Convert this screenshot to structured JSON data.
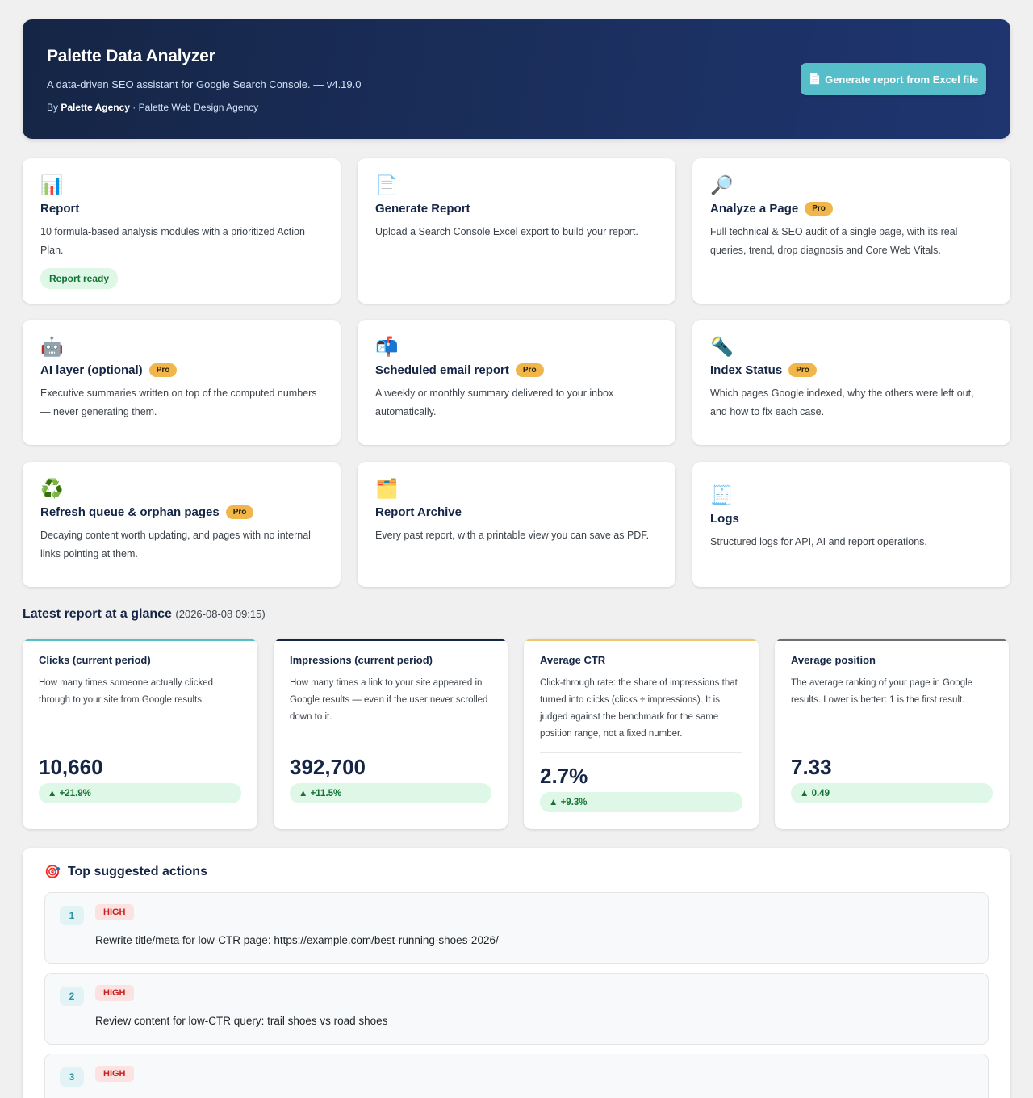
{
  "header": {
    "title": "Palette Data Analyzer",
    "subtitle": "A data-driven SEO assistant for Google Search Console. — v4.19.0",
    "by_prefix": "By",
    "agency": "Palette Agency",
    "agency_suffix": "· Palette Web Design Agency",
    "generate_icon": "document-icon",
    "generate_label": "Generate report from Excel file"
  },
  "features": [
    {
      "icon": "📊",
      "icon_name": "bar-chart-icon",
      "title": "Report",
      "desc": "10 formula-based analysis modules with a prioritized Action Plan.",
      "pro": false,
      "status": "Report ready"
    },
    {
      "icon": "📄",
      "icon_name": "document-icon",
      "title": "Generate Report",
      "desc": "Upload a Search Console Excel export to build your report.",
      "pro": false
    },
    {
      "icon": "🔎",
      "icon_name": "magnifier-icon",
      "title": "Analyze a Page",
      "desc": "Full technical & SEO audit of a single page, with its real queries, trend, drop diagnosis and Core Web Vitals.",
      "pro": true
    },
    {
      "icon": "🤖",
      "icon_name": "robot-icon",
      "title": "AI layer (optional)",
      "desc": "Executive summaries written on top of the computed numbers — never generating them.",
      "pro": true
    },
    {
      "icon": "📬",
      "icon_name": "mailbox-icon",
      "title": "Scheduled email report",
      "desc": "A weekly or monthly summary delivered to your inbox automatically.",
      "pro": true
    },
    {
      "icon": "🔦",
      "icon_name": "flashlight-icon",
      "title": "Index Status",
      "desc": "Which pages Google indexed, why the others were left out, and how to fix each case.",
      "pro": true
    },
    {
      "icon": "♻️",
      "icon_name": "recycle-icon",
      "title": "Refresh queue & orphan pages",
      "desc": "Decaying content worth updating, and pages with no internal links pointing at them.",
      "pro": true
    },
    {
      "icon": "🗂️",
      "icon_name": "archive-icon",
      "title": "Report Archive",
      "desc": "Every past report, with a printable view you can save as PDF.",
      "pro": false
    },
    {
      "icon": "🧾",
      "icon_name": "log-icon",
      "title": "Logs",
      "desc": "Structured logs for API, AI and report operations.",
      "pro": false
    }
  ],
  "pro_label": "Pro",
  "glance": {
    "title": "Latest report at a glance",
    "timestamp": "(2026-08-08 09:15)",
    "kpis": [
      {
        "title": "Clicks (current period)",
        "desc": "How many times someone actually clicked through to your site from Google results.",
        "value": "10,660",
        "change": "▲ +21.9%",
        "color": "#56bec9"
      },
      {
        "title": "Impressions (current period)",
        "desc": "How many times a link to your site appeared in Google results — even if the user never scrolled down to it.",
        "value": "392,700",
        "change": "▲ +11.5%",
        "color": "#152545"
      },
      {
        "title": "Average CTR",
        "desc": "Click-through rate: the share of impressions that turned into clicks (clicks ÷ impressions). It is judged against the benchmark for the same position range, not a fixed number.",
        "value": "2.7%",
        "change": "▲ +9.3%",
        "color": "#f0b64b"
      },
      {
        "title": "Average position",
        "desc": "The average ranking of your page in Google results. Lower is better: 1 is the first result.",
        "value": "7.33",
        "change": "▲ 0.49",
        "color": "#6b6f73"
      }
    ]
  },
  "actions": {
    "icon": "🎯",
    "title": "Top suggested actions",
    "items": [
      {
        "num": "1",
        "priority": "HIGH",
        "text": "Rewrite title/meta for low-CTR page: https://example.com/best-running-shoes-2026/"
      },
      {
        "num": "2",
        "priority": "HIGH",
        "text": "Review content for low-CTR query: trail shoes vs road shoes"
      },
      {
        "num": "3",
        "priority": "HIGH",
        "text": ""
      }
    ]
  }
}
